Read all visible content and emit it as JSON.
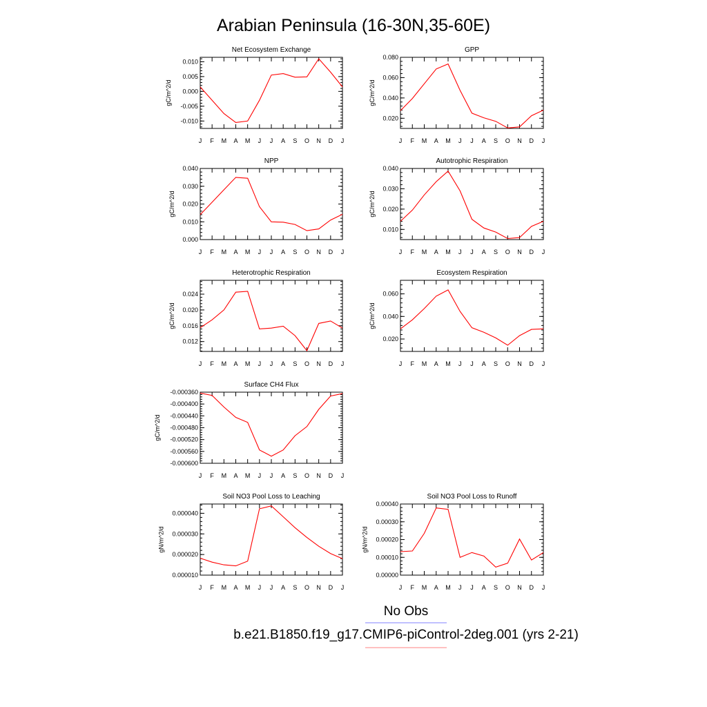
{
  "figure": {
    "title": "Arabian Peninsula (16-30N,35-60E)",
    "legend": [
      {
        "label": "No Obs",
        "color": "#8080ff"
      },
      {
        "label": "b.e21.B1850.f19_g17.CMIP6-piControl-2deg.001 (yrs 2-21)",
        "color": "#ff8080"
      }
    ]
  },
  "chart_data": [
    {
      "type": "line",
      "title": "Net Ecosystem Exchange",
      "ylabel": "gC/m^2/d",
      "color": "#ff0000",
      "categories": [
        "J",
        "F",
        "M",
        "A",
        "M",
        "J",
        "J",
        "A",
        "S",
        "O",
        "N",
        "D",
        "J"
      ],
      "ylim": [
        -0.0125,
        0.0115
      ],
      "yticks": [
        -0.01,
        -0.005,
        0.0,
        0.005,
        0.01
      ],
      "ytick_labels": [
        "-0.010",
        "-0.005",
        "0.000",
        "0.005",
        "0.010"
      ],
      "values": [
        0.0015,
        -0.003,
        -0.0075,
        -0.0105,
        -0.01,
        -0.003,
        0.0055,
        0.006,
        0.0048,
        0.0049,
        0.011,
        0.0065,
        0.0015
      ]
    },
    {
      "type": "line",
      "title": "GPP",
      "ylabel": "gC/m^2/d",
      "color": "#ff0000",
      "categories": [
        "J",
        "F",
        "M",
        "A",
        "M",
        "J",
        "J",
        "A",
        "S",
        "O",
        "N",
        "D",
        "J"
      ],
      "ylim": [
        0.01,
        0.08
      ],
      "yticks": [
        0.02,
        0.04,
        0.06,
        0.08
      ],
      "ytick_labels": [
        "0.020",
        "0.040",
        "0.060",
        "0.080"
      ],
      "values": [
        0.0275,
        0.0395,
        0.054,
        0.0685,
        0.0735,
        0.0475,
        0.025,
        0.0205,
        0.017,
        0.0105,
        0.0115,
        0.0225,
        0.028
      ]
    },
    {
      "type": "line",
      "title": "NPP",
      "ylabel": "gC/m^2/d",
      "color": "#ff0000",
      "categories": [
        "J",
        "F",
        "M",
        "A",
        "M",
        "J",
        "J",
        "A",
        "S",
        "O",
        "N",
        "D",
        "J"
      ],
      "ylim": [
        0.0,
        0.04
      ],
      "yticks": [
        0.0,
        0.01,
        0.02,
        0.03,
        0.04
      ],
      "ytick_labels": [
        "0.000",
        "0.010",
        "0.020",
        "0.030",
        "0.040"
      ],
      "values": [
        0.014,
        0.021,
        0.028,
        0.035,
        0.0345,
        0.0185,
        0.01,
        0.0098,
        0.0085,
        0.005,
        0.006,
        0.011,
        0.0142
      ]
    },
    {
      "type": "line",
      "title": "Autotrophic Respiration",
      "ylabel": "gC/m^2/d",
      "color": "#ff0000",
      "categories": [
        "J",
        "F",
        "M",
        "A",
        "M",
        "J",
        "J",
        "A",
        "S",
        "O",
        "N",
        "D",
        "J"
      ],
      "ylim": [
        0.005,
        0.04
      ],
      "yticks": [
        0.01,
        0.02,
        0.03,
        0.04
      ],
      "ytick_labels": [
        "0.010",
        "0.020",
        "0.030",
        "0.040"
      ],
      "values": [
        0.014,
        0.0195,
        0.027,
        0.0335,
        0.0387,
        0.029,
        0.015,
        0.0107,
        0.0087,
        0.0055,
        0.006,
        0.0115,
        0.014
      ]
    },
    {
      "type": "line",
      "title": "Heterotrophic Respiration",
      "ylabel": "gC/m^2/d",
      "color": "#ff0000",
      "categories": [
        "J",
        "F",
        "M",
        "A",
        "M",
        "J",
        "J",
        "A",
        "S",
        "O",
        "N",
        "D",
        "J"
      ],
      "ylim": [
        0.0095,
        0.0275
      ],
      "yticks": [
        0.012,
        0.016,
        0.02,
        0.024
      ],
      "ytick_labels": [
        "0.012",
        "0.016",
        "0.020",
        "0.024"
      ],
      "values": [
        0.0155,
        0.0175,
        0.02,
        0.0245,
        0.0247,
        0.0152,
        0.0154,
        0.0159,
        0.0135,
        0.0097,
        0.0166,
        0.0172,
        0.0154
      ]
    },
    {
      "type": "line",
      "title": "Ecosystem Respiration",
      "ylabel": "gC/m^2/d",
      "color": "#ff0000",
      "categories": [
        "J",
        "F",
        "M",
        "A",
        "M",
        "J",
        "J",
        "A",
        "S",
        "O",
        "N",
        "D",
        "J"
      ],
      "ylim": [
        0.009,
        0.072
      ],
      "yticks": [
        0.02,
        0.04,
        0.06
      ],
      "ytick_labels": [
        "0.020",
        "0.040",
        "0.060"
      ],
      "values": [
        0.029,
        0.037,
        0.047,
        0.058,
        0.0635,
        0.0445,
        0.03,
        0.026,
        0.021,
        0.0145,
        0.023,
        0.0285,
        0.029
      ]
    },
    {
      "type": "line",
      "title": "Surface CH4 Flux",
      "ylabel": "gC/m^2/d",
      "color": "#ff0000",
      "categories": [
        "J",
        "F",
        "M",
        "A",
        "M",
        "J",
        "J",
        "A",
        "S",
        "O",
        "N",
        "D",
        "J"
      ],
      "ylim": [
        -0.0006,
        -0.00036
      ],
      "yticks": [
        -0.0006,
        -0.00056,
        -0.00052,
        -0.00048,
        -0.00044,
        -0.0004,
        -0.00036
      ],
      "ytick_labels": [
        "-0.000600",
        "-0.000560",
        "-0.000520",
        "-0.000480",
        "-0.000440",
        "-0.000400",
        "-0.000360"
      ],
      "values": [
        -0.000363,
        -0.000371,
        -0.00041,
        -0.000445,
        -0.000462,
        -0.000555,
        -0.000576,
        -0.000555,
        -0.000507,
        -0.000476,
        -0.000418,
        -0.000373,
        -0.000365
      ]
    },
    {
      "type": "line",
      "title": "Soil NO3 Pool Loss to Leaching",
      "ylabel": "gN/m^2/d",
      "color": "#ff0000",
      "categories": [
        "J",
        "F",
        "M",
        "A",
        "M",
        "J",
        "J",
        "A",
        "S",
        "O",
        "N",
        "D",
        "J"
      ],
      "ylim": [
        1e-05,
        4.45e-05
      ],
      "yticks": [
        1e-05,
        2e-05,
        3e-05,
        4e-05
      ],
      "ytick_labels": [
        "0.000010",
        "0.000020",
        "0.000030",
        "0.000040"
      ],
      "values": [
        1.82e-05,
        1.63e-05,
        1.5e-05,
        1.45e-05,
        1.68e-05,
        4.22e-05,
        4.36e-05,
        3.83e-05,
        3.3e-05,
        2.83e-05,
        2.4e-05,
        2.05e-05,
        1.8e-05
      ]
    },
    {
      "type": "line",
      "title": "Soil NO3 Pool Loss to Runoff",
      "ylabel": "gN/m^2/d",
      "color": "#ff0000",
      "categories": [
        "J",
        "F",
        "M",
        "A",
        "M",
        "J",
        "J",
        "A",
        "S",
        "O",
        "N",
        "D",
        "J"
      ],
      "ylim": [
        0.0,
        0.0004
      ],
      "yticks": [
        0.0,
        0.0001,
        0.0002,
        0.0003,
        0.0004
      ],
      "ytick_labels": [
        "0.00000",
        "0.00010",
        "0.00020",
        "0.00030",
        "0.00040"
      ],
      "values": [
        0.000132,
        0.000136,
        0.000235,
        0.000378,
        0.00037,
        0.0001,
        0.000127,
        0.000107,
        4.5e-05,
        6.7e-05,
        0.000203,
        8.5e-05,
        0.000127
      ]
    }
  ]
}
